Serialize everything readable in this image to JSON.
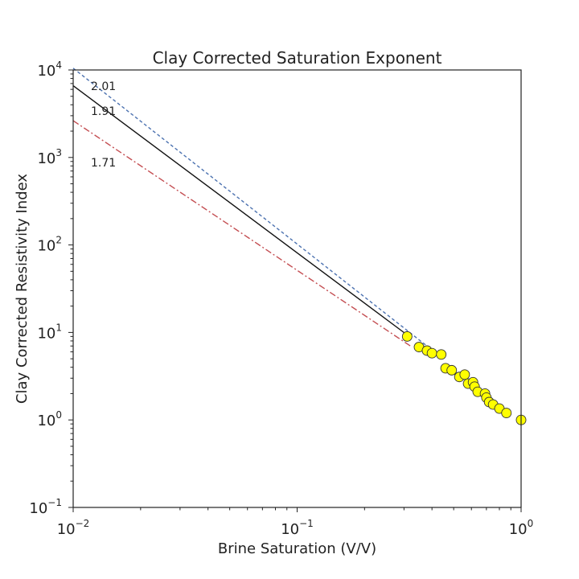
{
  "chart_data": {
    "type": "scatter",
    "title": "Clay Corrected Saturation Exponent",
    "xlabel": "Brine Saturation (V/V)",
    "ylabel": "Clay Corrected Resistivity Index",
    "xscale": "log",
    "yscale": "log",
    "xlim": [
      0.01,
      1
    ],
    "ylim": [
      0.1,
      10000
    ],
    "xticks": [
      {
        "value": 0.01,
        "base": "10",
        "exp": "−2"
      },
      {
        "value": 0.1,
        "base": "10",
        "exp": "−1"
      },
      {
        "value": 1,
        "base": "10",
        "exp": "0"
      }
    ],
    "yticks": [
      {
        "value": 0.1,
        "base": "10",
        "exp": "−1"
      },
      {
        "value": 1,
        "base": "10",
        "exp": "0"
      },
      {
        "value": 10,
        "base": "10",
        "exp": "1"
      },
      {
        "value": 100,
        "base": "10",
        "exp": "2"
      },
      {
        "value": 1000,
        "base": "10",
        "exp": "3"
      },
      {
        "value": 10000,
        "base": "10",
        "exp": "4"
      }
    ],
    "grid": false,
    "lines": [
      {
        "exponent": 2.01,
        "label": "2.01",
        "color": "#4c72b0",
        "style": "dashed",
        "x_range": [
          0.01,
          0.42
        ]
      },
      {
        "exponent": 1.91,
        "label": "1.91",
        "color": "#111111",
        "style": "solid",
        "x_range": [
          0.01,
          0.31
        ]
      },
      {
        "exponent": 1.71,
        "label": "1.71",
        "color": "#c44e52",
        "style": "dashdot",
        "x_range": [
          0.01,
          0.32
        ]
      }
    ],
    "points": {
      "color": "#ffff00",
      "edgecolor": "#333333",
      "x": [
        0.31,
        0.35,
        0.38,
        0.4,
        0.44,
        0.46,
        0.49,
        0.53,
        0.56,
        0.58,
        0.61,
        0.62,
        0.64,
        0.69,
        0.7,
        0.72,
        0.75,
        0.8,
        0.86,
        1.0
      ],
      "y": [
        9.0,
        6.8,
        6.2,
        5.8,
        5.6,
        3.9,
        3.7,
        3.1,
        3.3,
        2.6,
        2.7,
        2.4,
        2.1,
        2.0,
        1.8,
        1.6,
        1.5,
        1.35,
        1.2,
        1.0
      ]
    }
  }
}
